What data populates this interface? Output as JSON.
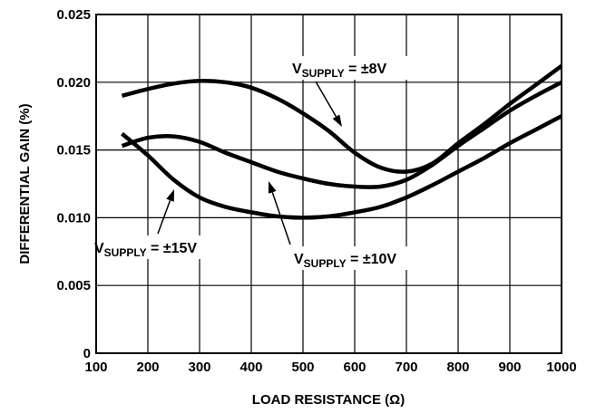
{
  "chart_data": {
    "type": "line",
    "title": "",
    "xlabel": "LOAD RESISTANCE (Ω)",
    "ylabel": "DIFFERENTIAL GAIN (%)",
    "xlim": [
      100,
      1000
    ],
    "ylim": [
      0,
      0.025
    ],
    "x_ticks": [
      100,
      200,
      300,
      400,
      500,
      600,
      700,
      800,
      900,
      1000
    ],
    "x_tick_labels": [
      "100",
      "200",
      "300",
      "400",
      "500",
      "600",
      "700",
      "800",
      "900",
      "1000"
    ],
    "y_ticks": [
      0,
      0.005,
      0.01,
      0.015,
      0.02,
      0.025
    ],
    "y_tick_labels": [
      "0",
      "0.005",
      "0.010",
      "0.015",
      "0.020",
      "0.025"
    ],
    "grid": true,
    "legend": "none",
    "series": [
      {
        "key": "v8",
        "points": [
          [
            150,
            0.019
          ],
          [
            200,
            0.0195
          ],
          [
            250,
            0.0199
          ],
          [
            300,
            0.0201
          ],
          [
            350,
            0.02
          ],
          [
            400,
            0.0196
          ],
          [
            450,
            0.0188
          ],
          [
            500,
            0.0177
          ],
          [
            550,
            0.0164
          ],
          [
            600,
            0.0148
          ],
          [
            650,
            0.0137
          ],
          [
            700,
            0.0134
          ],
          [
            750,
            0.014
          ],
          [
            800,
            0.0155
          ],
          [
            850,
            0.0169
          ],
          [
            900,
            0.0184
          ],
          [
            950,
            0.0198
          ],
          [
            1000,
            0.0212
          ]
        ]
      },
      {
        "key": "v10",
        "points": [
          [
            150,
            0.0153
          ],
          [
            200,
            0.0159
          ],
          [
            250,
            0.016
          ],
          [
            300,
            0.0156
          ],
          [
            350,
            0.0148
          ],
          [
            400,
            0.0141
          ],
          [
            450,
            0.0134
          ],
          [
            500,
            0.0129
          ],
          [
            550,
            0.0125
          ],
          [
            600,
            0.0123
          ],
          [
            650,
            0.0123
          ],
          [
            700,
            0.0128
          ],
          [
            750,
            0.0139
          ],
          [
            800,
            0.0153
          ],
          [
            850,
            0.0166
          ],
          [
            900,
            0.0179
          ],
          [
            950,
            0.019
          ],
          [
            1000,
            0.02
          ]
        ]
      },
      {
        "key": "v15",
        "points": [
          [
            150,
            0.0162
          ],
          [
            200,
            0.0146
          ],
          [
            250,
            0.0128
          ],
          [
            300,
            0.0115
          ],
          [
            350,
            0.0108
          ],
          [
            400,
            0.0104
          ],
          [
            450,
            0.0101
          ],
          [
            500,
            0.01
          ],
          [
            550,
            0.0101
          ],
          [
            600,
            0.0104
          ],
          [
            650,
            0.0108
          ],
          [
            700,
            0.0115
          ],
          [
            750,
            0.0124
          ],
          [
            800,
            0.0134
          ],
          [
            850,
            0.0144
          ],
          [
            900,
            0.0155
          ],
          [
            950,
            0.0165
          ],
          [
            1000,
            0.0175
          ]
        ]
      }
    ],
    "annotations": [
      {
        "key": "v8",
        "main": "V",
        "sub": "SUPPLY",
        "rest": " = ±8V"
      },
      {
        "key": "v10",
        "main": "V",
        "sub": "SUPPLY",
        "rest": " = ±10V"
      },
      {
        "key": "v15",
        "main": "V",
        "sub": "SUPPLY",
        "rest": " = ±15V"
      }
    ]
  }
}
